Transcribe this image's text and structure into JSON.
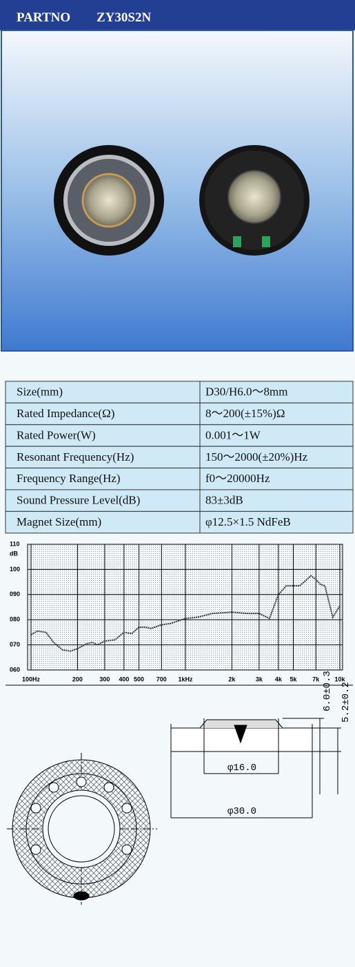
{
  "header": {
    "label": "PARTNO",
    "part_number": "ZY30S2N"
  },
  "specs": {
    "rows": [
      [
        "Size(mm)",
        "D30/H6.0～8mm"
      ],
      [
        "Rated Impedance(Ω)",
        "8～200(±15%)Ω"
      ],
      [
        "Rated Power(W)",
        "0.001～1W"
      ],
      [
        "Resonant Frequency(Hz)",
        "150～2000(±20%)Hz"
      ],
      [
        "Frequency Range(Hz)",
        "f0～20000Hz"
      ],
      [
        "Sound Pressure Level(dB)",
        "83±3dB"
      ],
      [
        "Magnet Size(mm)",
        "φ12.5×1.5 NdFeB"
      ]
    ]
  },
  "response_chart": {
    "type": "line",
    "y_unit": "dB",
    "log_x": true,
    "color": "#333333",
    "xlim": [
      100,
      10000
    ],
    "ylim": [
      60,
      110
    ],
    "xticks": [
      {
        "value": 100,
        "label": "100Hz"
      },
      200,
      300,
      400,
      500,
      700,
      {
        "value": 1000,
        "label": "1kHz"
      },
      {
        "value": 2000,
        "label": "2k"
      },
      {
        "value": 3000,
        "label": "3k"
      },
      {
        "value": 4000,
        "label": "4k"
      },
      {
        "value": 5000,
        "label": "5k"
      },
      {
        "value": 7000,
        "label": "7k"
      },
      {
        "value": 10000,
        "label": "10k"
      }
    ],
    "yticks": [
      {
        "value": 60,
        "label": "060"
      },
      {
        "value": 70,
        "label": "070"
      },
      {
        "value": 80,
        "label": "080"
      },
      {
        "value": 90,
        "label": "090"
      },
      100,
      110
    ],
    "x": [
      100,
      110,
      125,
      140,
      160,
      180,
      200,
      230,
      250,
      270,
      300,
      350,
      400,
      450,
      500,
      550,
      600,
      700,
      800,
      1000,
      1200,
      1500,
      2000,
      2500,
      3000,
      3500,
      4000,
      4500,
      5000,
      5500,
      6000,
      6500,
      7000,
      7500,
      8000,
      9000,
      10000
    ],
    "values": [
      74,
      75.5,
      75,
      71,
      68,
      67.5,
      68.5,
      70.5,
      71,
      70,
      71.5,
      72,
      75,
      74.5,
      77,
      77,
      76.5,
      78,
      78.5,
      80.5,
      81,
      82.5,
      83,
      82.5,
      82.5,
      80.5,
      90,
      93.5,
      93.5,
      93.5,
      95.5,
      97.5,
      96,
      94,
      93.5,
      81,
      85.5
    ]
  },
  "drawing": {
    "outer_diameter": "φ30.0",
    "inner_diameter": "φ16.0",
    "total_height": "6.0±0.3",
    "body_height": "5.2±0.2"
  }
}
